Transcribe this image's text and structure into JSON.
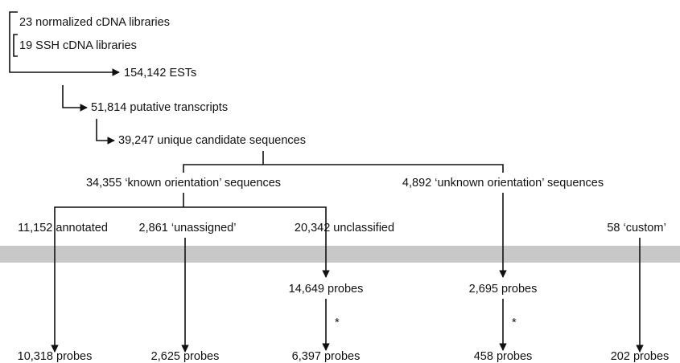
{
  "nodes": [
    {
      "label": "23 normalized cDNA libraries"
    },
    {
      "label": "19 SSH cDNA libraries"
    },
    {
      "label": "154,142 ESTs"
    },
    {
      "label": "51,814 putative transcripts"
    },
    {
      "label": "39,247 unique candidate sequences"
    },
    {
      "label": "34,355 ‘known orientation’ sequences"
    },
    {
      "label": "4,892 ‘unknown orientation’ sequences"
    },
    {
      "label": "11,152 annotated"
    },
    {
      "label": "2,861 ‘unassigned’"
    },
    {
      "label": "20,342 unclassified"
    },
    {
      "label": "58 ‘custom’"
    },
    {
      "label": "14,649 probes"
    },
    {
      "label": "2,695 probes"
    },
    {
      "label": "10,318 probes"
    },
    {
      "label": "2,625 probes"
    },
    {
      "label": "6,397 probes"
    },
    {
      "label": "458 probes"
    },
    {
      "label": "202 probes"
    }
  ],
  "annotations": [
    "*",
    "*"
  ]
}
